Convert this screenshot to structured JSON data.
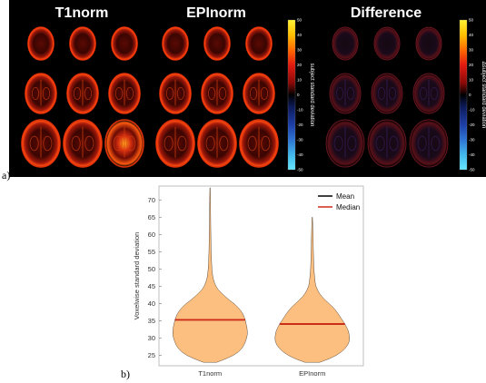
{
  "panel_a": {
    "label": "a)",
    "panels": [
      {
        "title": "T1norm",
        "colorbar": true,
        "mode": "std"
      },
      {
        "title": "EPInorm",
        "colorbar": true,
        "mode": "std"
      },
      {
        "title": "Difference",
        "colorbar": true,
        "mode": "diff"
      }
    ],
    "colorbar": {
      "label_std": "subject standard deviation",
      "label_diff": "Δsubject standard deviation",
      "ticks": [
        "50",
        "40",
        "30",
        "20",
        "10",
        "0",
        "-10",
        "-20",
        "-30",
        "-40",
        "-50"
      ],
      "colors": [
        "#fff233",
        "#ffc000",
        "#ff6a00",
        "#e31a10",
        "#8a0a08",
        "#000000",
        "#0d1a5a",
        "#1d3fa8",
        "#2e74d4",
        "#42b8ea",
        "#66e6ff"
      ]
    }
  },
  "panel_b": {
    "label": "b)",
    "legend": [
      {
        "label": "Mean",
        "color": "#000000"
      },
      {
        "label": "Median",
        "color": "#d02a18"
      }
    ],
    "fill_color": "#fdbf80",
    "chart_data": {
      "type": "violin",
      "categories": [
        "T1norm",
        "EPInorm"
      ],
      "ylabel": "Voxelwise standard deviation",
      "ylim": [
        22,
        74
      ],
      "yticks": [
        25,
        30,
        35,
        40,
        45,
        50,
        55,
        60,
        65,
        70
      ],
      "series": [
        {
          "category": "T1norm",
          "mean": 35.3,
          "median": 35.3,
          "min": 23,
          "max": 73.5,
          "density": [
            [
              23,
              0.18
            ],
            [
              24,
              0.42
            ],
            [
              25,
              0.62
            ],
            [
              26,
              0.76
            ],
            [
              27,
              0.85
            ],
            [
              28,
              0.91
            ],
            [
              29,
              0.95
            ],
            [
              30,
              0.98
            ],
            [
              31,
              1.0
            ],
            [
              32,
              1.0
            ],
            [
              33,
              0.99
            ],
            [
              34,
              0.97
            ],
            [
              35,
              0.95
            ],
            [
              36,
              0.92
            ],
            [
              37,
              0.88
            ],
            [
              38,
              0.82
            ],
            [
              39,
              0.74
            ],
            [
              40,
              0.64
            ],
            [
              41,
              0.52
            ],
            [
              42,
              0.41
            ],
            [
              43,
              0.31
            ],
            [
              44,
              0.22
            ],
            [
              45,
              0.16
            ],
            [
              46,
              0.12
            ],
            [
              47,
              0.09
            ],
            [
              48,
              0.07
            ],
            [
              50,
              0.05
            ],
            [
              52,
              0.04
            ],
            [
              55,
              0.03
            ],
            [
              58,
              0.024
            ],
            [
              62,
              0.018
            ],
            [
              66,
              0.014
            ],
            [
              70,
              0.01
            ],
            [
              73.5,
              0.005
            ]
          ]
        },
        {
          "category": "EPInorm",
          "mean": 34.1,
          "median": 34.1,
          "min": 23,
          "max": 65,
          "density": [
            [
              23,
              0.2
            ],
            [
              24,
              0.45
            ],
            [
              25,
              0.64
            ],
            [
              26,
              0.78
            ],
            [
              27,
              0.88
            ],
            [
              28,
              0.95
            ],
            [
              29,
              0.99
            ],
            [
              30,
              1.0
            ],
            [
              31,
              0.99
            ],
            [
              32,
              0.97
            ],
            [
              33,
              0.93
            ],
            [
              34,
              0.88
            ],
            [
              35,
              0.82
            ],
            [
              36,
              0.76
            ],
            [
              37,
              0.7
            ],
            [
              38,
              0.63
            ],
            [
              39,
              0.55
            ],
            [
              40,
              0.45
            ],
            [
              41,
              0.35
            ],
            [
              42,
              0.26
            ],
            [
              43,
              0.19
            ],
            [
              44,
              0.14
            ],
            [
              45,
              0.1
            ],
            [
              46,
              0.08
            ],
            [
              48,
              0.06
            ],
            [
              50,
              0.045
            ],
            [
              53,
              0.035
            ],
            [
              56,
              0.028
            ],
            [
              60,
              0.02
            ],
            [
              63,
              0.012
            ],
            [
              65,
              0.005
            ]
          ]
        }
      ]
    }
  }
}
